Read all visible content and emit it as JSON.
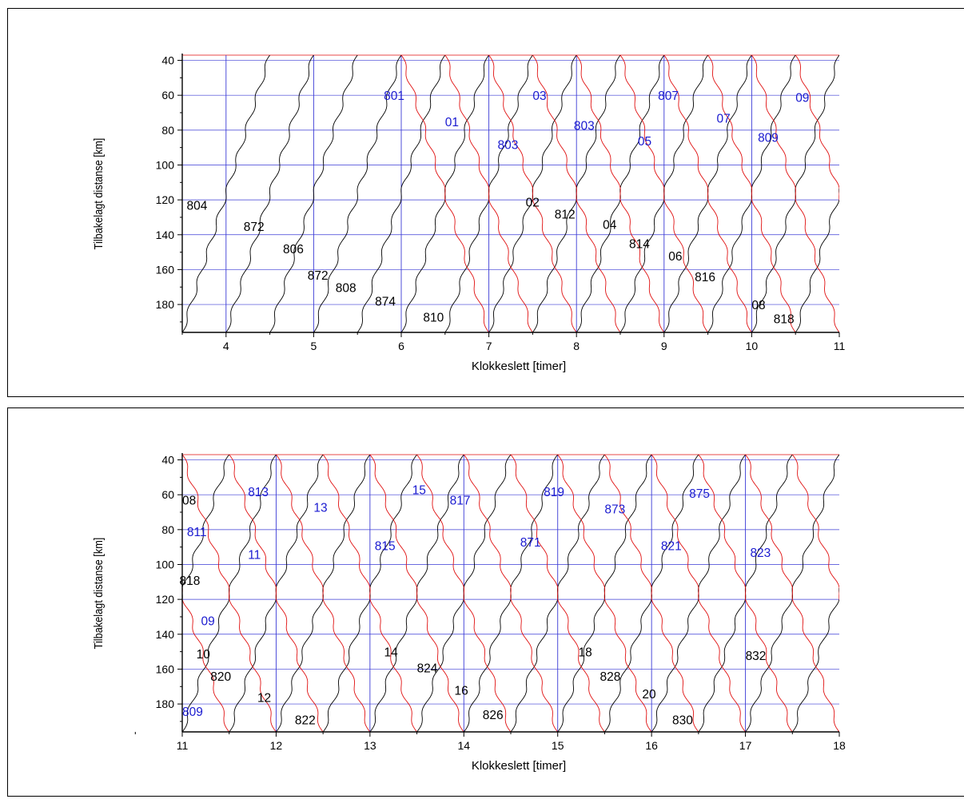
{
  "colors": {
    "grid_blue": "#3b3bd6",
    "grid_red": "#e84a4a",
    "train_black": "#000000",
    "train_red": "#e01010",
    "label_blue": "#1b1bd0",
    "label_black": "#000000"
  },
  "chart_data": [
    {
      "type": "line",
      "xlabel": "Klokkeslett [timer]",
      "ylabel": "Tilbakelagt distanse [km]",
      "xlim": [
        3.5,
        11
      ],
      "ylim": [
        37,
        196
      ],
      "y_inverted": true,
      "xticks": [
        4,
        5,
        6,
        7,
        8,
        9,
        10,
        11
      ],
      "yticks": [
        40,
        60,
        80,
        100,
        120,
        140,
        160,
        180
      ],
      "grid": true,
      "lines": [
        {
          "direction": "rising",
          "color": "black",
          "starts_at_196": [
            3.5,
            4.0,
            4.5,
            5.0,
            5.5,
            6.0,
            6.5,
            7.0,
            7.5,
            8.0,
            8.5,
            9.0,
            9.5,
            10.0,
            10.5
          ]
        },
        {
          "direction": "falling",
          "color": "red",
          "starts_at_37": [
            6.0,
            6.5,
            7.0,
            7.5,
            8.0,
            8.5,
            9.0,
            9.5,
            10.0,
            10.5
          ]
        }
      ],
      "labels": [
        {
          "text": "804",
          "x": 3.55,
          "y": 123,
          "color": "black"
        },
        {
          "text": "872",
          "x": 4.2,
          "y": 135,
          "color": "black"
        },
        {
          "text": "806",
          "x": 4.65,
          "y": 148,
          "color": "black"
        },
        {
          "text": "872",
          "x": 4.93,
          "y": 163,
          "color": "black"
        },
        {
          "text": "808",
          "x": 5.25,
          "y": 170,
          "color": "black"
        },
        {
          "text": "874",
          "x": 5.7,
          "y": 178,
          "color": "black"
        },
        {
          "text": "810",
          "x": 6.25,
          "y": 187,
          "color": "black"
        },
        {
          "text": "801",
          "x": 5.8,
          "y": 60,
          "color": "blue"
        },
        {
          "text": "01",
          "x": 6.5,
          "y": 75,
          "color": "blue"
        },
        {
          "text": "803",
          "x": 7.1,
          "y": 88,
          "color": "blue"
        },
        {
          "text": "03",
          "x": 7.5,
          "y": 60,
          "color": "blue"
        },
        {
          "text": "803",
          "x": 7.97,
          "y": 77,
          "color": "blue"
        },
        {
          "text": "05",
          "x": 8.7,
          "y": 86,
          "color": "blue"
        },
        {
          "text": "807",
          "x": 8.93,
          "y": 60,
          "color": "blue"
        },
        {
          "text": "07",
          "x": 9.6,
          "y": 73,
          "color": "blue"
        },
        {
          "text": "809",
          "x": 10.07,
          "y": 84,
          "color": "blue"
        },
        {
          "text": "09",
          "x": 10.5,
          "y": 61,
          "color": "blue"
        },
        {
          "text": "02",
          "x": 7.42,
          "y": 121,
          "color": "black"
        },
        {
          "text": "812",
          "x": 7.75,
          "y": 128,
          "color": "black"
        },
        {
          "text": "04",
          "x": 8.3,
          "y": 134,
          "color": "black"
        },
        {
          "text": "814",
          "x": 8.6,
          "y": 145,
          "color": "black"
        },
        {
          "text": "06",
          "x": 9.05,
          "y": 152,
          "color": "black"
        },
        {
          "text": "816",
          "x": 9.35,
          "y": 164,
          "color": "black"
        },
        {
          "text": "08",
          "x": 10.0,
          "y": 180,
          "color": "black"
        },
        {
          "text": "818",
          "x": 10.25,
          "y": 188,
          "color": "black"
        }
      ]
    },
    {
      "type": "line",
      "xlabel": "Klokkeslett [timer]",
      "ylabel": "Tilbakelagt distanse [km]",
      "xlim": [
        11,
        18
      ],
      "ylim": [
        37,
        196
      ],
      "y_inverted": true,
      "xticks": [
        11,
        12,
        13,
        14,
        15,
        16,
        17,
        18
      ],
      "yticks": [
        40,
        60,
        80,
        100,
        120,
        140,
        160,
        180
      ],
      "grid": true,
      "lines": [
        {
          "direction": "rising",
          "color": "black",
          "starts_at_196": [
            10.0,
            10.5,
            11.0,
            11.5,
            12.0,
            12.5,
            13.0,
            13.5,
            14.0,
            14.5,
            15.0,
            15.5,
            16.0,
            16.5,
            17.0,
            17.5
          ]
        },
        {
          "direction": "falling",
          "color": "red",
          "starts_at_37": [
            10.5,
            11.0,
            11.5,
            12.0,
            12.5,
            13.0,
            13.5,
            14.0,
            14.5,
            15.0,
            15.5,
            16.0,
            16.5,
            17.0,
            17.5
          ]
        }
      ],
      "labels": [
        {
          "text": "08",
          "x": 11.0,
          "y": 63,
          "color": "black"
        },
        {
          "text": "811",
          "x": 11.05,
          "y": 81,
          "color": "blue"
        },
        {
          "text": "813",
          "x": 11.7,
          "y": 58,
          "color": "blue"
        },
        {
          "text": "11",
          "x": 11.7,
          "y": 94,
          "color": "blue"
        },
        {
          "text": "13",
          "x": 12.4,
          "y": 67,
          "color": "blue"
        },
        {
          "text": "15",
          "x": 13.45,
          "y": 57,
          "color": "blue"
        },
        {
          "text": "815",
          "x": 13.05,
          "y": 89,
          "color": "blue"
        },
        {
          "text": "817",
          "x": 13.85,
          "y": 63,
          "color": "blue"
        },
        {
          "text": "871",
          "x": 14.6,
          "y": 87,
          "color": "blue"
        },
        {
          "text": "819",
          "x": 14.85,
          "y": 58,
          "color": "blue"
        },
        {
          "text": "873",
          "x": 15.5,
          "y": 68,
          "color": "blue"
        },
        {
          "text": "821",
          "x": 16.1,
          "y": 89,
          "color": "blue"
        },
        {
          "text": "875",
          "x": 16.4,
          "y": 59,
          "color": "blue"
        },
        {
          "text": "823",
          "x": 17.05,
          "y": 93,
          "color": "blue"
        },
        {
          "text": "818",
          "x": 10.97,
          "y": 109,
          "color": "black"
        },
        {
          "text": "09",
          "x": 11.2,
          "y": 132,
          "color": "blue"
        },
        {
          "text": "10",
          "x": 11.15,
          "y": 151,
          "color": "black"
        },
        {
          "text": "820",
          "x": 11.3,
          "y": 164,
          "color": "black"
        },
        {
          "text": "12",
          "x": 11.8,
          "y": 176,
          "color": "black"
        },
        {
          "text": "822",
          "x": 12.2,
          "y": 189,
          "color": "black"
        },
        {
          "text": "809",
          "x": 11.0,
          "y": 184,
          "color": "blue"
        },
        {
          "text": "14",
          "x": 13.15,
          "y": 150,
          "color": "black"
        },
        {
          "text": "824",
          "x": 13.5,
          "y": 159,
          "color": "black"
        },
        {
          "text": "16",
          "x": 13.9,
          "y": 172,
          "color": "black"
        },
        {
          "text": "826",
          "x": 14.2,
          "y": 186,
          "color": "black"
        },
        {
          "text": "18",
          "x": 15.22,
          "y": 150,
          "color": "black"
        },
        {
          "text": "828",
          "x": 15.45,
          "y": 164,
          "color": "black"
        },
        {
          "text": "20",
          "x": 15.9,
          "y": 174,
          "color": "black"
        },
        {
          "text": "830",
          "x": 16.22,
          "y": 189,
          "color": "black"
        },
        {
          "text": "832",
          "x": 17.0,
          "y": 152,
          "color": "black"
        }
      ]
    }
  ]
}
